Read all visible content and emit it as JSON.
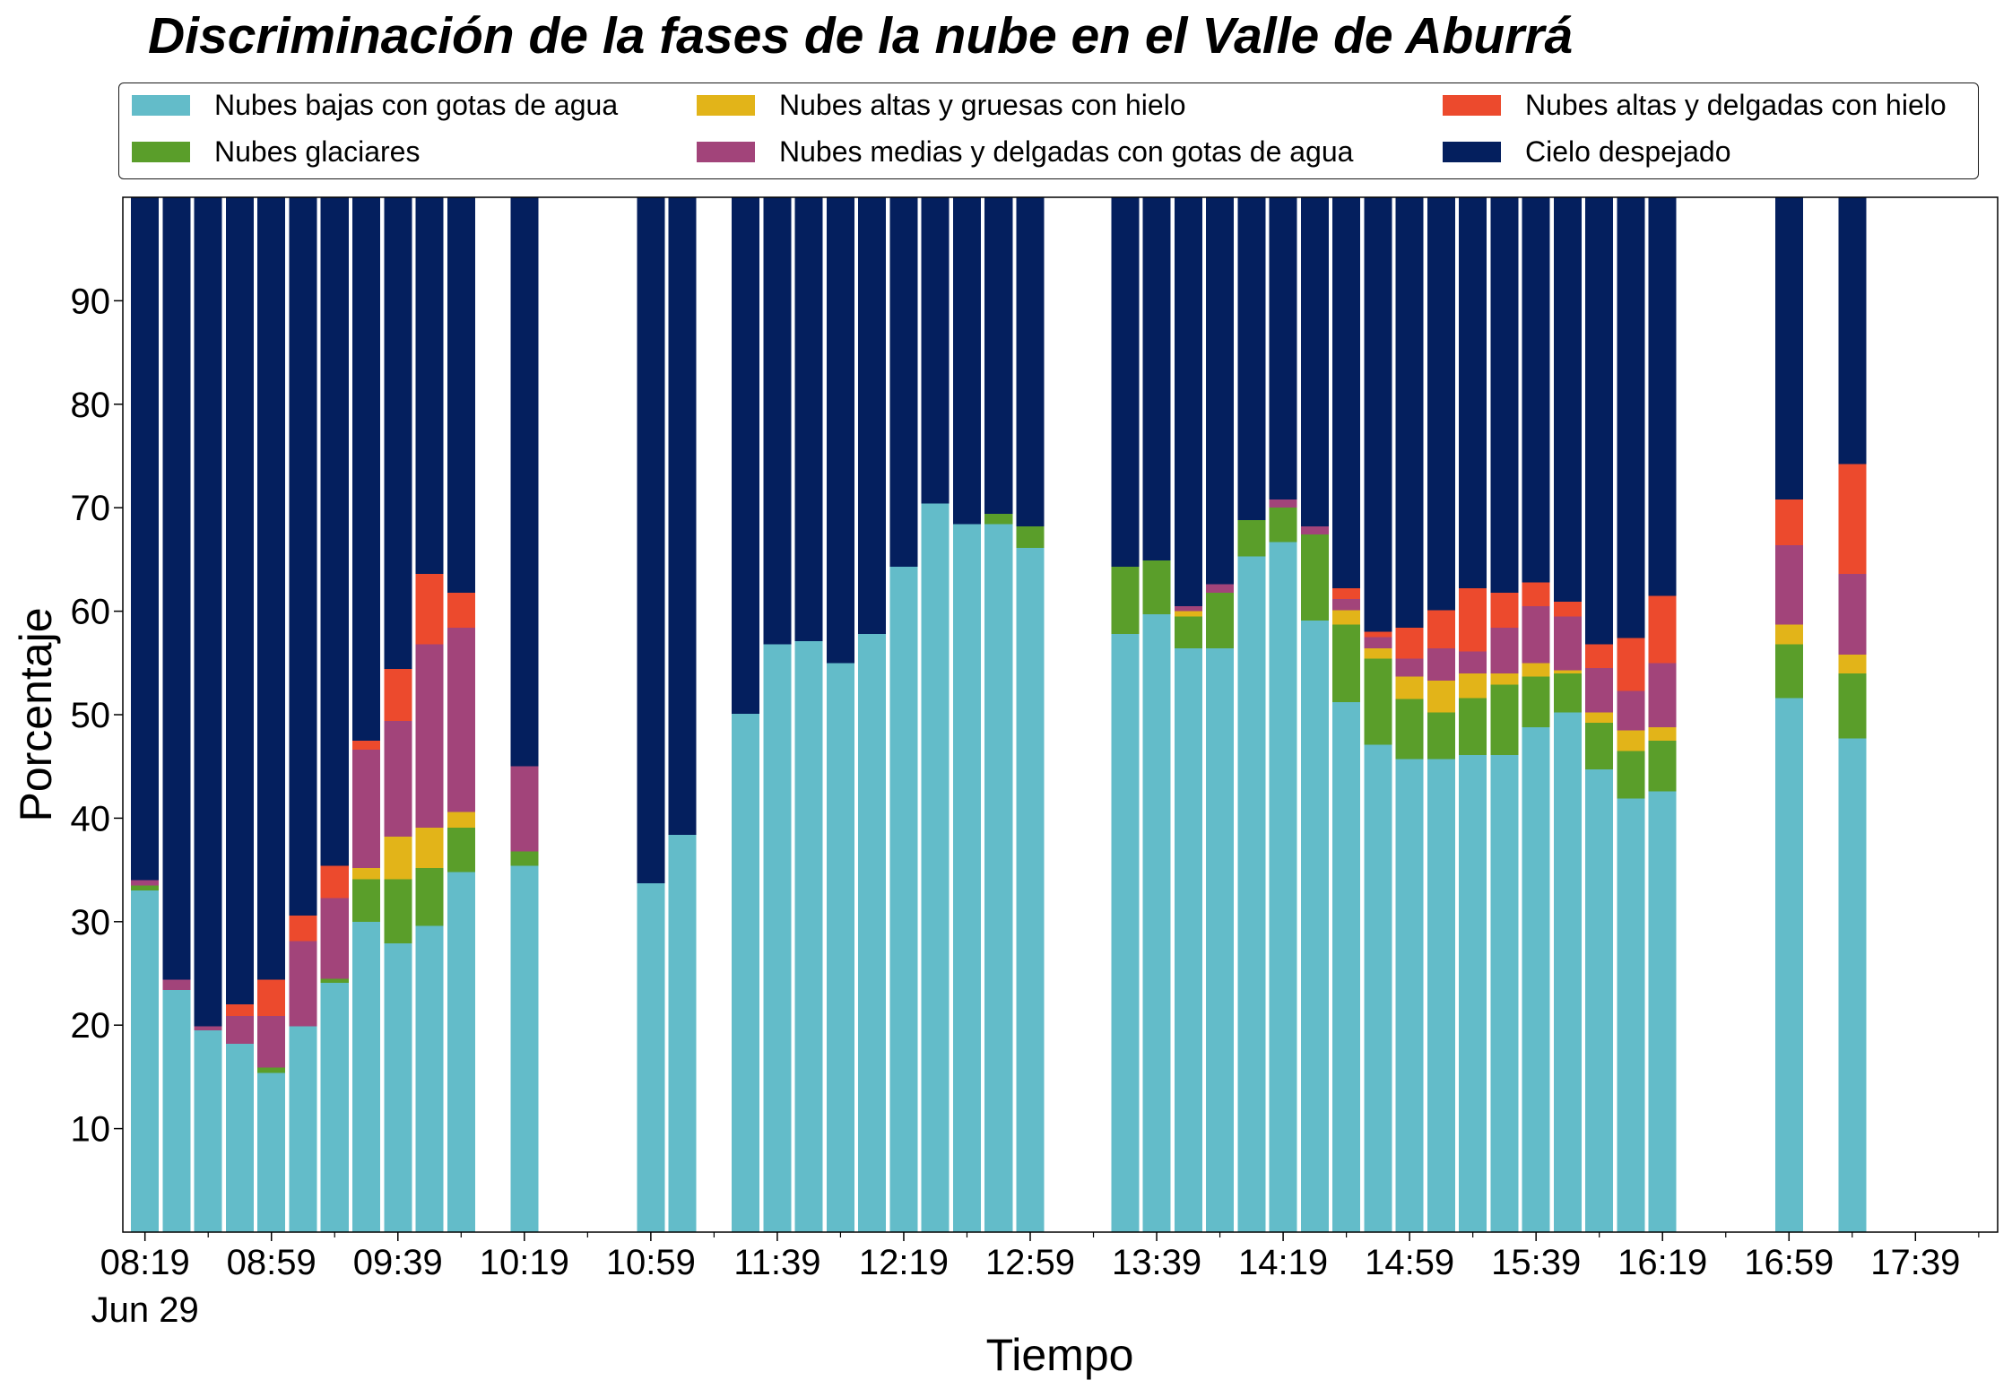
{
  "chart_data": {
    "type": "bar",
    "stacked": true,
    "title": "Discriminación de la fases de la nube en el Valle de Aburrá",
    "xlabel": "Tiempo",
    "ylabel": "Porcentaje",
    "ylim": [
      0,
      100
    ],
    "y_ticks": [
      10,
      20,
      30,
      40,
      50,
      60,
      70,
      80,
      90
    ],
    "xlim": [
      "08:12",
      "18:05"
    ],
    "x_tick_labels": [
      "08:19",
      "08:59",
      "09:39",
      "10:19",
      "10:59",
      "11:39",
      "12:19",
      "12:59",
      "13:39",
      "14:19",
      "14:59",
      "15:39",
      "16:19",
      "16:59",
      "17:39"
    ],
    "x_date_label": "Jun 29",
    "legend_position": "top",
    "grid": false,
    "x": [
      "08:19",
      "08:29",
      "08:39",
      "08:49",
      "08:59",
      "09:09",
      "09:19",
      "09:29",
      "09:39",
      "09:49",
      "09:59",
      "10:19",
      "10:59",
      "11:09",
      "11:29",
      "11:39",
      "11:49",
      "11:59",
      "12:09",
      "12:19",
      "12:29",
      "12:39",
      "12:49",
      "12:59",
      "13:29",
      "13:39",
      "13:49",
      "13:59",
      "14:09",
      "14:19",
      "14:29",
      "14:39",
      "14:49",
      "14:59",
      "15:09",
      "15:19",
      "15:29",
      "15:39",
      "15:49",
      "15:59",
      "16:09",
      "16:19",
      "16:59",
      "17:19"
    ],
    "series": [
      {
        "name": "Nubes bajas con gotas de agua",
        "color": "#63bcc9",
        "values": [
          33.0,
          23.4,
          19.5,
          18.2,
          15.4,
          19.9,
          24.1,
          30.0,
          27.9,
          29.6,
          34.8,
          35.4,
          33.7,
          38.4,
          50.1,
          56.8,
          57.1,
          55.0,
          57.8,
          64.3,
          70.4,
          68.4,
          68.4,
          66.1,
          57.8,
          59.7,
          56.4,
          56.4,
          65.3,
          66.7,
          59.1,
          51.2,
          47.1,
          45.7,
          45.7,
          46.1,
          46.1,
          48.8,
          50.2,
          44.7,
          41.9,
          42.6,
          51.6,
          47.7
        ]
      },
      {
        "name": "Nubes glaciares",
        "color": "#5a9e2a",
        "values": [
          0.5,
          0,
          0,
          0,
          0.5,
          0,
          0.4,
          4.1,
          6.2,
          5.6,
          4.3,
          1.4,
          0,
          0,
          0,
          0,
          0,
          0,
          0,
          0,
          0,
          0,
          1.0,
          2.1,
          6.5,
          5.2,
          3.1,
          5.4,
          3.5,
          3.3,
          8.3,
          7.5,
          8.3,
          5.8,
          4.5,
          5.5,
          6.8,
          4.9,
          3.8,
          4.5,
          4.6,
          4.9,
          5.2,
          6.3
        ]
      },
      {
        "name": "Nubes altas y gruesas con hielo",
        "color": "#e2b419",
        "values": [
          0,
          0,
          0,
          0,
          0,
          0,
          0,
          1.1,
          4.1,
          3.9,
          1.5,
          0,
          0,
          0,
          0,
          0,
          0,
          0,
          0,
          0,
          0,
          0,
          0,
          0,
          0,
          0,
          0.5,
          0,
          0,
          0,
          0,
          1.4,
          1.0,
          2.2,
          3.1,
          2.4,
          1.1,
          1.3,
          0.3,
          1.0,
          2.0,
          1.3,
          1.9,
          1.8
        ]
      },
      {
        "name": "Nubes medias y delgadas con gotas de agua",
        "color": "#a2447a",
        "values": [
          0.5,
          1.0,
          0.4,
          2.7,
          5.0,
          8.2,
          7.8,
          11.4,
          11.2,
          17.7,
          17.8,
          8.2,
          0,
          0,
          0,
          0,
          0,
          0,
          0,
          0,
          0,
          0,
          0,
          0,
          0,
          0,
          0.5,
          0.8,
          0,
          0.8,
          0.8,
          1.1,
          1.1,
          1.7,
          3.1,
          2.1,
          4.4,
          5.5,
          5.2,
          4.3,
          3.8,
          6.2,
          7.7,
          7.8
        ]
      },
      {
        "name": "Nubes altas y delgadas con hielo",
        "color": "#ec4a2d",
        "values": [
          0,
          0,
          0,
          1.1,
          3.5,
          2.5,
          3.1,
          0.9,
          5.0,
          6.8,
          3.4,
          0,
          0,
          0,
          0,
          0,
          0,
          0,
          0,
          0,
          0,
          0,
          0,
          0,
          0,
          0,
          0,
          0,
          0,
          0,
          0,
          1.0,
          0.5,
          3.0,
          3.7,
          6.1,
          3.4,
          2.3,
          1.4,
          2.3,
          5.1,
          6.5,
          4.4,
          10.6
        ]
      },
      {
        "name": "Cielo despejado",
        "color": "#041f5e",
        "values": [
          66.0,
          75.6,
          80.1,
          78.0,
          75.6,
          69.4,
          64.6,
          52.5,
          45.6,
          36.4,
          38.2,
          55.0,
          66.3,
          61.6,
          49.9,
          43.2,
          42.9,
          45.0,
          42.2,
          35.7,
          29.6,
          31.6,
          30.6,
          31.8,
          35.7,
          35.1,
          39.5,
          37.4,
          31.2,
          29.2,
          31.8,
          37.8,
          42.0,
          41.6,
          39.9,
          37.8,
          38.2,
          37.2,
          39.1,
          43.2,
          42.6,
          38.5,
          29.2,
          25.8
        ]
      }
    ]
  }
}
